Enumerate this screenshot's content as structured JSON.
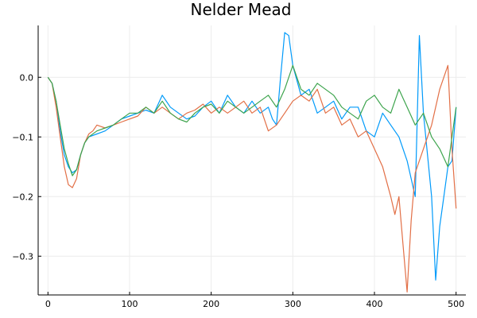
{
  "chart_data": {
    "type": "line",
    "title": "Nelder Mead",
    "xlabel": "",
    "ylabel": "",
    "xlim": [
      -12,
      512
    ],
    "ylim": [
      -0.365,
      0.087
    ],
    "grid": true,
    "legend": "none",
    "x_ticks": [
      0,
      100,
      200,
      300,
      400,
      500
    ],
    "x_tick_labels": [
      "0",
      "100",
      "200",
      "300",
      "400",
      "500"
    ],
    "y_ticks": [
      0.0,
      -0.1,
      -0.2,
      -0.3
    ],
    "y_tick_labels": [
      "0.0",
      "−0.1",
      "−0.2",
      "−0.3"
    ],
    "series": [
      {
        "color": "#009AFA",
        "x": [
          0,
          5,
          10,
          15,
          20,
          25,
          30,
          35,
          40,
          45,
          50,
          60,
          70,
          80,
          90,
          100,
          110,
          120,
          130,
          140,
          150,
          160,
          170,
          180,
          190,
          200,
          210,
          220,
          230,
          240,
          250,
          260,
          270,
          275,
          280,
          285,
          290,
          295,
          300,
          310,
          320,
          330,
          340,
          350,
          360,
          370,
          380,
          390,
          400,
          410,
          420,
          430,
          440,
          450,
          455,
          460,
          470,
          475,
          480,
          485,
          490,
          495,
          500
        ],
        "y": [
          0.0,
          -0.01,
          -0.04,
          -0.09,
          -0.13,
          -0.15,
          -0.16,
          -0.155,
          -0.13,
          -0.11,
          -0.1,
          -0.095,
          -0.09,
          -0.08,
          -0.07,
          -0.065,
          -0.06,
          -0.055,
          -0.06,
          -0.03,
          -0.05,
          -0.06,
          -0.07,
          -0.065,
          -0.05,
          -0.04,
          -0.06,
          -0.03,
          -0.05,
          -0.06,
          -0.04,
          -0.06,
          -0.05,
          -0.07,
          -0.08,
          0.0,
          0.075,
          0.07,
          0.02,
          -0.03,
          -0.02,
          -0.06,
          -0.05,
          -0.04,
          -0.07,
          -0.05,
          -0.05,
          -0.09,
          -0.1,
          -0.06,
          -0.08,
          -0.1,
          -0.14,
          -0.2,
          0.07,
          -0.06,
          -0.2,
          -0.34,
          -0.25,
          -0.2,
          -0.15,
          -0.14,
          -0.05
        ]
      },
      {
        "color": "#E26F46",
        "x": [
          0,
          5,
          10,
          15,
          20,
          25,
          30,
          35,
          40,
          45,
          50,
          55,
          60,
          70,
          80,
          90,
          100,
          110,
          120,
          130,
          140,
          150,
          160,
          170,
          180,
          190,
          200,
          210,
          220,
          230,
          240,
          250,
          260,
          270,
          280,
          290,
          300,
          310,
          320,
          330,
          340,
          350,
          360,
          370,
          380,
          390,
          400,
          410,
          420,
          425,
          430,
          435,
          440,
          445,
          450,
          460,
          470,
          480,
          490,
          495,
          500
        ],
        "y": [
          0.0,
          -0.01,
          -0.05,
          -0.1,
          -0.15,
          -0.18,
          -0.185,
          -0.17,
          -0.13,
          -0.11,
          -0.095,
          -0.09,
          -0.08,
          -0.085,
          -0.08,
          -0.075,
          -0.07,
          -0.065,
          -0.05,
          -0.06,
          -0.05,
          -0.06,
          -0.07,
          -0.06,
          -0.055,
          -0.045,
          -0.06,
          -0.05,
          -0.06,
          -0.05,
          -0.04,
          -0.06,
          -0.05,
          -0.09,
          -0.08,
          -0.06,
          -0.04,
          -0.03,
          -0.04,
          -0.02,
          -0.06,
          -0.05,
          -0.08,
          -0.07,
          -0.1,
          -0.09,
          -0.12,
          -0.15,
          -0.2,
          -0.23,
          -0.2,
          -0.28,
          -0.36,
          -0.24,
          -0.16,
          -0.12,
          -0.08,
          -0.02,
          0.02,
          -0.12,
          -0.22
        ]
      },
      {
        "color": "#3DA44D",
        "x": [
          0,
          5,
          10,
          15,
          20,
          25,
          30,
          35,
          40,
          45,
          50,
          60,
          70,
          80,
          90,
          100,
          110,
          120,
          130,
          140,
          150,
          160,
          170,
          180,
          190,
          200,
          210,
          220,
          230,
          240,
          250,
          260,
          270,
          280,
          290,
          300,
          310,
          320,
          330,
          340,
          350,
          360,
          370,
          380,
          390,
          400,
          410,
          420,
          430,
          440,
          450,
          460,
          470,
          480,
          490,
          500
        ],
        "y": [
          0.0,
          -0.01,
          -0.04,
          -0.08,
          -0.12,
          -0.145,
          -0.165,
          -0.155,
          -0.13,
          -0.11,
          -0.1,
          -0.09,
          -0.085,
          -0.08,
          -0.07,
          -0.06,
          -0.06,
          -0.05,
          -0.06,
          -0.04,
          -0.06,
          -0.07,
          -0.075,
          -0.06,
          -0.05,
          -0.045,
          -0.06,
          -0.04,
          -0.05,
          -0.06,
          -0.05,
          -0.04,
          -0.03,
          -0.05,
          -0.02,
          0.02,
          -0.02,
          -0.03,
          -0.01,
          -0.02,
          -0.03,
          -0.05,
          -0.06,
          -0.07,
          -0.04,
          -0.03,
          -0.05,
          -0.06,
          -0.02,
          -0.05,
          -0.08,
          -0.06,
          -0.1,
          -0.12,
          -0.15,
          -0.05
        ]
      }
    ]
  }
}
